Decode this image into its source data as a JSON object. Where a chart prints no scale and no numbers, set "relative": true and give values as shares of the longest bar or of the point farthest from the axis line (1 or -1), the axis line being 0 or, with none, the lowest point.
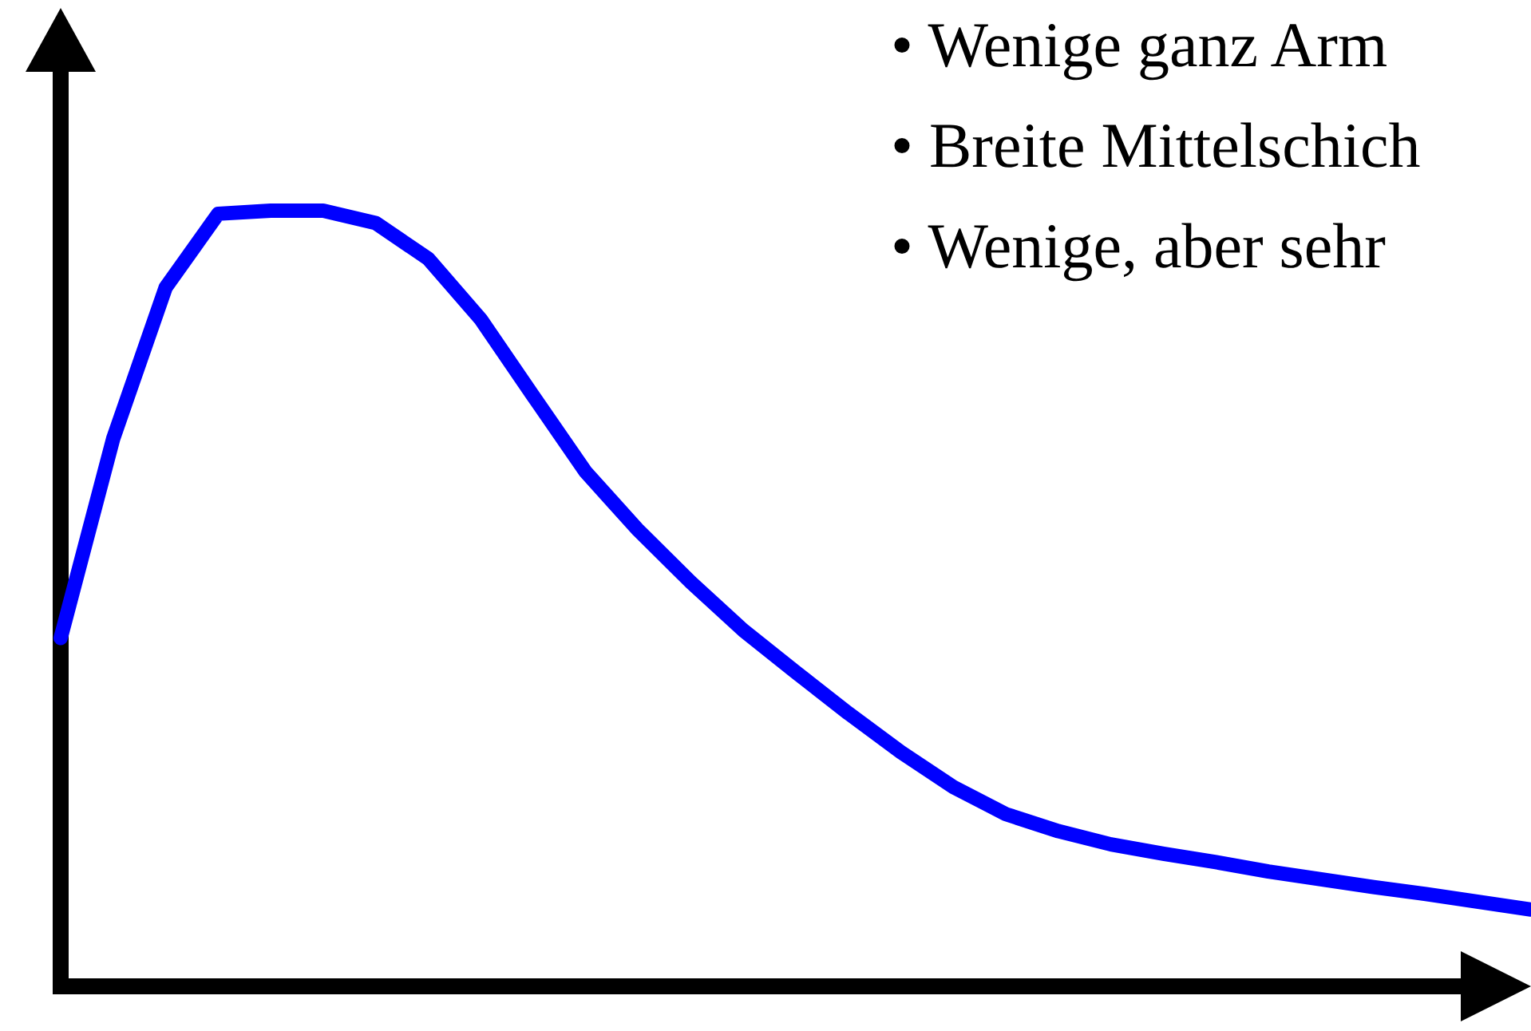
{
  "chart_data": {
    "type": "line",
    "relative": true,
    "categories": [
      null,
      null,
      null,
      null,
      null,
      null,
      null,
      null,
      null,
      null,
      null,
      null,
      null,
      null,
      null,
      null,
      null,
      null,
      null,
      null,
      null,
      null,
      null,
      null,
      null,
      null,
      null,
      null,
      null
    ],
    "series": [
      {
        "color": "#0000ff",
        "values": [
          0.449,
          0.706,
          0.901,
          0.996,
          1,
          1,
          0.984,
          0.938,
          0.86,
          0.761,
          0.663,
          0.588,
          0.521,
          0.459,
          0.405,
          0.352,
          0.302,
          0.257,
          0.222,
          0.2,
          0.183,
          0.171,
          0.16,
          0.148,
          0.138,
          0.128,
          0.119,
          0.109,
          0.099
        ]
      }
    ],
    "annotations": [
      "• Wenige ganz Arm",
      "• Breite Mittelschich",
      "• Wenige, aber sehr"
    ],
    "line_style": "solid"
  }
}
